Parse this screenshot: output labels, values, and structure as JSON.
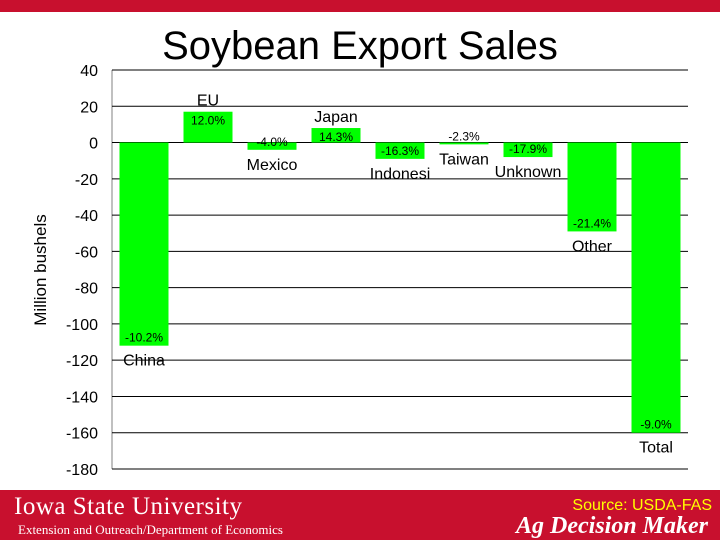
{
  "slide": {
    "title": "Soybean Export Sales",
    "top_bar_color": "#c8102e",
    "footer": {
      "logo_text": "Iowa State University",
      "subtitle": "Extension and Outreach/Department of Economics",
      "source": "Source: USDA-FAS",
      "brand": "Ag Decision Maker",
      "background_color": "#c8102e",
      "source_color": "#ffff00"
    }
  },
  "chart_data": {
    "type": "bar",
    "title": "Soybean Export Sales",
    "ylabel": "Million bushels",
    "xlabel": "",
    "ylim": [
      -180,
      40
    ],
    "yticks": [
      40,
      20,
      0,
      -20,
      -40,
      -60,
      -80,
      -100,
      -120,
      -140,
      -160,
      -180
    ],
    "grid": true,
    "bar_color": "#00ff00",
    "categories": [
      "China",
      "EU",
      "Mexico",
      "Japan",
      "Indonesi",
      "Taiwan",
      "Unknown",
      "Other",
      "Total"
    ],
    "values": [
      -112,
      17,
      -4,
      8,
      -9,
      -1,
      -8,
      -49,
      -160
    ],
    "pct_labels": [
      "-10.2%",
      "12.0%",
      "-4.0%",
      "14.3%",
      "-16.3%",
      "-2.3%",
      "-17.9%",
      "-21.4%",
      "-9.0%"
    ]
  }
}
